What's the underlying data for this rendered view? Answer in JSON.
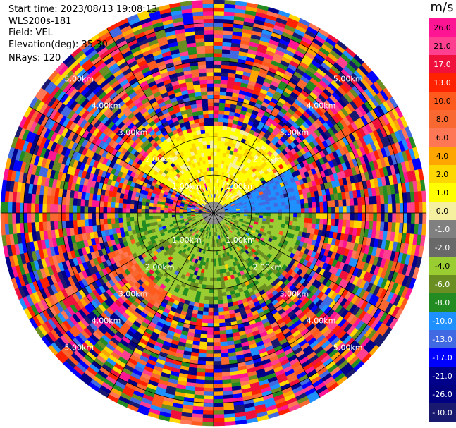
{
  "info": {
    "start_time": "Start time: 2023/08/13 19:08:13",
    "site": "WLS200s-181",
    "field": "Field: VEL",
    "elevation": "Elevation(deg): 35.30",
    "nrays": "NRays: 120"
  },
  "chart_data": {
    "type": "heatmap",
    "projection": "polar",
    "field": "VEL",
    "n_rays": 120,
    "range_rings_km": [
      1.0,
      2.0,
      3.0,
      4.0,
      5.0
    ],
    "range_ring_labels": [
      "1.00km",
      "2.00km",
      "3.00km",
      "4.00km",
      "5.00km"
    ],
    "colorbar": {
      "title": "m/s",
      "ticks": [
        "26.0",
        "21.0",
        "17.0",
        "13.0",
        "10.0",
        "8.0",
        "6.0",
        "4.0",
        "2.0",
        "1.0",
        "0.0",
        "-1.0",
        "-2.0",
        "-4.0",
        "-6.0",
        "-8.0",
        "-10.0",
        "-13.0",
        "-17.0",
        "-21.0",
        "-26.0",
        "-30.0"
      ],
      "colors": [
        "#ff1493",
        "#ff3f8f",
        "#f0103c",
        "#ff2200",
        "#ff5a1e",
        "#f86830",
        "#ff7755",
        "#ffa500",
        "#ffd700",
        "#ffff00",
        "#f5f0a0",
        "#808080",
        "#696969",
        "#9acd32",
        "#6b8e23",
        "#228b22",
        "#1e90ff",
        "#4169e1",
        "#0000ff",
        "#00008b",
        "#000080",
        "#191970"
      ]
    },
    "sectors": [
      {
        "azimuth_from": 300,
        "azimuth_to": 60,
        "max_range_km": 2.3,
        "value_range": [
          0.5,
          3.0
        ],
        "description": "positive velocities (yellow) north"
      },
      {
        "azimuth_from": 60,
        "azimuth_to": 90,
        "max_range_km": 2.3,
        "value_range": [
          -12.0,
          -9.0
        ],
        "description": "blue band east"
      },
      {
        "azimuth_from": 90,
        "azimuth_to": 270,
        "max_range_km": 2.4,
        "value_range": [
          -3.0,
          -0.5
        ],
        "description": "negative velocities (green) south"
      },
      {
        "azimuth_from": 210,
        "azimuth_to": 250,
        "max_range_km": 2.9,
        "value_range": [
          7.0,
          11.0
        ],
        "description": "orange sector southwest"
      }
    ]
  }
}
